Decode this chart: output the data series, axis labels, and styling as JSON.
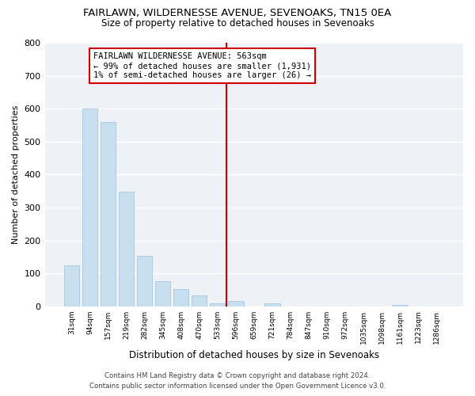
{
  "title": "FAIRLAWN, WILDERNESSE AVENUE, SEVENOAKS, TN15 0EA",
  "subtitle": "Size of property relative to detached houses in Sevenoaks",
  "xlabel": "Distribution of detached houses by size in Sevenoaks",
  "ylabel": "Number of detached properties",
  "bar_color": "#c8dff0",
  "bar_edge_color": "#a0c0d8",
  "categories": [
    "31sqm",
    "94sqm",
    "157sqm",
    "219sqm",
    "282sqm",
    "345sqm",
    "408sqm",
    "470sqm",
    "533sqm",
    "596sqm",
    "659sqm",
    "721sqm",
    "784sqm",
    "847sqm",
    "910sqm",
    "972sqm",
    "1035sqm",
    "1098sqm",
    "1161sqm",
    "1223sqm",
    "1286sqm"
  ],
  "values": [
    125,
    600,
    560,
    348,
    152,
    75,
    52,
    33,
    10,
    15,
    0,
    10,
    0,
    0,
    0,
    0,
    0,
    0,
    5,
    0,
    0
  ],
  "ylim": [
    0,
    800
  ],
  "yticks": [
    0,
    100,
    200,
    300,
    400,
    500,
    600,
    700,
    800
  ],
  "vline_x": 8.5,
  "vline_color": "#cc0000",
  "annotation_text": "FAIRLAWN WILDERNESSE AVENUE: 563sqm\n← 99% of detached houses are smaller (1,931)\n1% of semi-detached houses are larger (26) →",
  "annotation_box_color": "#ffffff",
  "annotation_box_edge_color": "#cc0000",
  "footer_line1": "Contains HM Land Registry data © Crown copyright and database right 2024.",
  "footer_line2": "Contains public sector information licensed under the Open Government Licence v3.0.",
  "background_color": "#ffffff",
  "plot_bg_color": "#eef2f7"
}
